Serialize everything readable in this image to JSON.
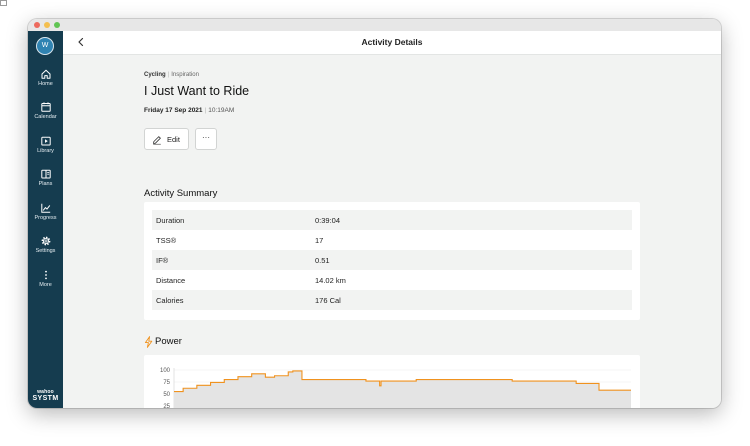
{
  "user": {
    "avatar_initial": "W"
  },
  "sidebar": {
    "items": [
      {
        "label": "Home",
        "icon": "home-icon"
      },
      {
        "label": "Calendar",
        "icon": "calendar-icon"
      },
      {
        "label": "Library",
        "icon": "library-icon"
      },
      {
        "label": "Plans",
        "icon": "plans-icon"
      },
      {
        "label": "Progress",
        "icon": "progress-icon"
      },
      {
        "label": "Settings",
        "icon": "gear-icon"
      },
      {
        "label": "More",
        "icon": "more-vertical-icon"
      }
    ],
    "brand_top": "wahoo",
    "brand_bottom": "SYSTM"
  },
  "header": {
    "title": "Activity Details"
  },
  "activity": {
    "sport": "Cycling",
    "category": "Inspiration",
    "title": "I Just Want to Ride",
    "date": "Friday 17 Sep 2021",
    "time": "10:19AM"
  },
  "actions": {
    "edit_label": "Edit",
    "more_label": "···"
  },
  "summary": {
    "title": "Activity Summary",
    "rows": [
      {
        "label": "Duration",
        "value": "0:39:04"
      },
      {
        "label": "TSS®",
        "value": "17"
      },
      {
        "label": "IF®",
        "value": "0.51"
      },
      {
        "label": "Distance",
        "value": "14.02 km"
      },
      {
        "label": "Calories",
        "value": "176 Cal"
      }
    ]
  },
  "power": {
    "title": "Power"
  },
  "colors": {
    "sidebar": "#153c4f",
    "accent_orange": "#f0921e",
    "content_bg": "#f2f3f2"
  },
  "chart_data": {
    "type": "area",
    "title": "Power",
    "xlabel": "",
    "ylabel": "",
    "y_ticks": [
      100,
      75,
      50,
      25
    ],
    "ylim": [
      0,
      100
    ],
    "xlim": [
      0,
      100
    ],
    "series": [
      {
        "points": [
          [
            0,
            55
          ],
          [
            2,
            55
          ],
          [
            2,
            62
          ],
          [
            5,
            62
          ],
          [
            5,
            68
          ],
          [
            8,
            68
          ],
          [
            8,
            74
          ],
          [
            11,
            74
          ],
          [
            11,
            80
          ],
          [
            14,
            80
          ],
          [
            14,
            86
          ],
          [
            17,
            86
          ],
          [
            17,
            92
          ],
          [
            20,
            92
          ],
          [
            20,
            85
          ],
          [
            22,
            85
          ],
          [
            22,
            88
          ],
          [
            25,
            88
          ],
          [
            25,
            96
          ],
          [
            26,
            96
          ],
          [
            26,
            98
          ],
          [
            28,
            98
          ],
          [
            28,
            80
          ],
          [
            42,
            80
          ],
          [
            42,
            77
          ],
          [
            45,
            77
          ],
          [
            45,
            67
          ],
          [
            45.3,
            67
          ],
          [
            45.3,
            77
          ],
          [
            53,
            77
          ],
          [
            53,
            80
          ],
          [
            74,
            80
          ],
          [
            74,
            77
          ],
          [
            88,
            77
          ],
          [
            88,
            72
          ],
          [
            93,
            72
          ],
          [
            93,
            58
          ],
          [
            100,
            58
          ]
        ]
      }
    ]
  }
}
